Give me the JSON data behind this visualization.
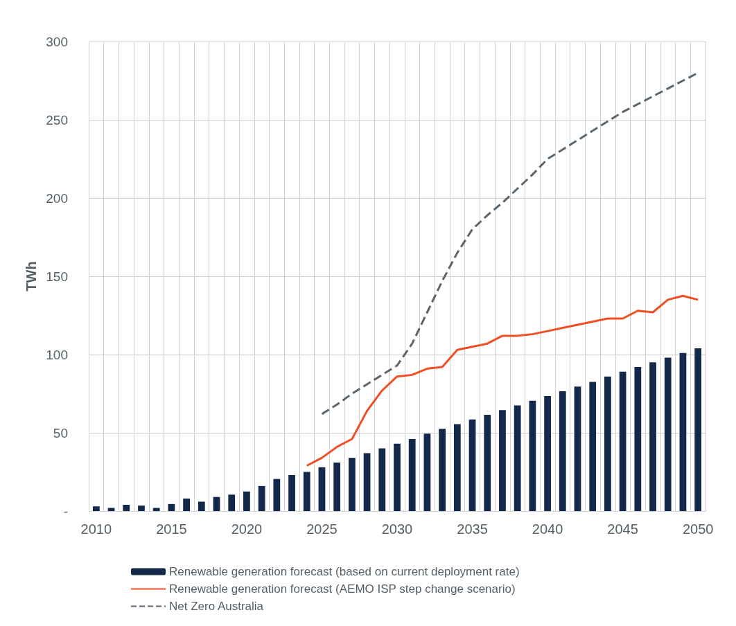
{
  "chart_data": {
    "type": "bar",
    "ylabel": "TWh",
    "categories": [
      "2010",
      null,
      null,
      null,
      null,
      "2015",
      null,
      null,
      null,
      null,
      "2020",
      null,
      null,
      null,
      null,
      "2025",
      null,
      null,
      null,
      null,
      "2030",
      null,
      null,
      null,
      null,
      "2035",
      null,
      null,
      null,
      null,
      "2040",
      null,
      null,
      null,
      null,
      "2045",
      null,
      null,
      null,
      null,
      "2050"
    ],
    "series": [
      {
        "name": "Renewable generation forecast (based on current deployment rate)",
        "color": "#13294b",
        "values": [
          3,
          2,
          4,
          3.5,
          2,
          4.5,
          8,
          6,
          9,
          10.5,
          12.5,
          16,
          20.5,
          23,
          25,
          28,
          31,
          34,
          37,
          40,
          43,
          46,
          49.5,
          52.5,
          55.5,
          58.5,
          61.5,
          64.5,
          67.5,
          70.5,
          73.5,
          76.5,
          79.5,
          82.5,
          86,
          89,
          92,
          95,
          98,
          101,
          104
        ]
      },
      {
        "name": "Renewable generation forecast (AEMO ISP step change scenario)",
        "type": "line",
        "line_style": "solid",
        "color": "#f04e23",
        "values": [
          null,
          null,
          null,
          null,
          null,
          null,
          null,
          null,
          null,
          null,
          null,
          null,
          null,
          null,
          29,
          34,
          41,
          46,
          64,
          77,
          86,
          87,
          91,
          92,
          103,
          105,
          107,
          112,
          112,
          113,
          115,
          117,
          119,
          121,
          123,
          123,
          128,
          127,
          135,
          137.5,
          135
        ]
      },
      {
        "name": "Net Zero Australia",
        "type": "line",
        "line_style": "dashed",
        "color": "#5b6770",
        "values": [
          null,
          null,
          null,
          null,
          null,
          null,
          null,
          null,
          null,
          null,
          null,
          null,
          null,
          null,
          null,
          62,
          68,
          75,
          81,
          87,
          93,
          107,
          127,
          147,
          165,
          180,
          189,
          197,
          206,
          215,
          225,
          231,
          237,
          243,
          249,
          255,
          260,
          265,
          270,
          275,
          280
        ]
      }
    ],
    "ylim": [
      0,
      300
    ],
    "yticks": [
      {
        "value": 0,
        "label": "-"
      },
      50,
      100,
      150,
      200,
      250,
      300
    ],
    "grid": true,
    "legend": "bottom",
    "marker": "none"
  }
}
